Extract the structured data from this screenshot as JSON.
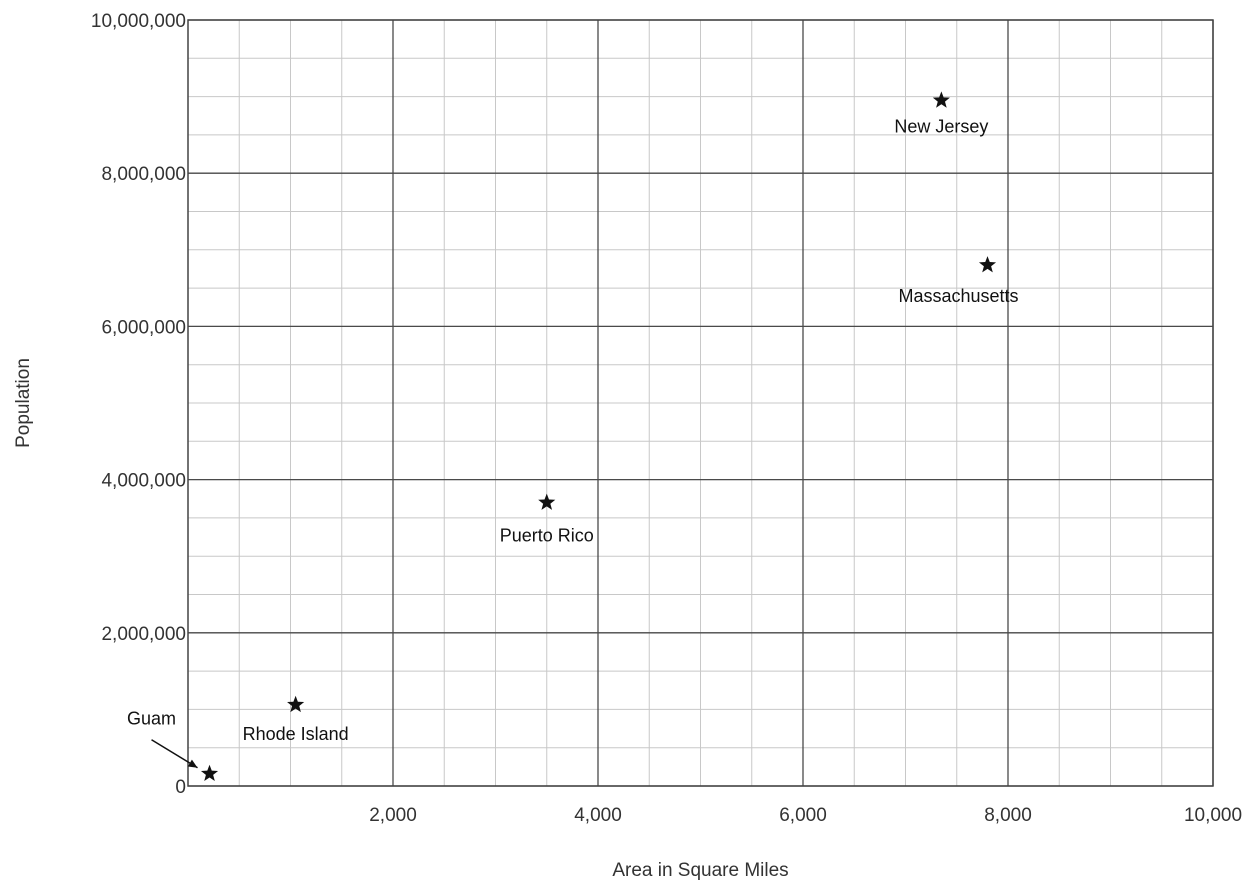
{
  "chart_data": {
    "type": "scatter",
    "xlabel": "Area in Square Miles",
    "ylabel": "Population",
    "xlim": [
      0,
      10000
    ],
    "ylim": [
      0,
      10000000
    ],
    "x_ticks": [
      2000,
      4000,
      6000,
      8000,
      10000
    ],
    "x_tick_labels": [
      "2,000",
      "4,000",
      "6,000",
      "8,000",
      "10,000"
    ],
    "y_ticks": [
      0,
      2000000,
      4000000,
      6000000,
      8000000,
      10000000
    ],
    "y_tick_labels": [
      "0",
      "2,000,000",
      "4,000,000",
      "6,000,000",
      "8,000,000",
      "10,000,000"
    ],
    "x_minor_step": 500,
    "y_minor_step": 500000,
    "grid": true,
    "marker": "star",
    "points": [
      {
        "label": "Guam",
        "x": 210,
        "y": 160000
      },
      {
        "label": "Rhode Island",
        "x": 1050,
        "y": 1060000
      },
      {
        "label": "Puerto Rico",
        "x": 3500,
        "y": 3700000
      },
      {
        "label": "New Jersey",
        "x": 7350,
        "y": 8950000
      },
      {
        "label": "Massachusetts",
        "x": 7800,
        "y": 6800000
      }
    ]
  }
}
